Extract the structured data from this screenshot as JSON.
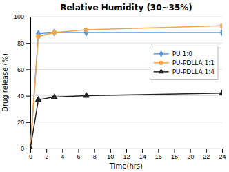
{
  "chart_data": {
    "type": "line",
    "title": "Relative Humidity (30~35%)",
    "xlabel": "Time(hrs)",
    "ylabel": "Drug release (%)",
    "x": [
      0,
      1,
      3,
      7,
      24
    ],
    "series": [
      {
        "name": "PU 1:0",
        "color": "#5B9BD5",
        "marker": "diamond",
        "line_style": "solid",
        "values": [
          0,
          87,
          88,
          88,
          88
        ]
      },
      {
        "name": "PU-PDLLA 1:1",
        "color": "#F4A44A",
        "marker": "circle",
        "line_style": "solid",
        "values": [
          0,
          85,
          88,
          90,
          93
        ]
      },
      {
        "name": "PU-PDLLA 1:4",
        "color": "#222222",
        "marker": "triangle",
        "line_style": "solid",
        "values": [
          0,
          37,
          39,
          40,
          42
        ]
      }
    ],
    "xlim": [
      0,
      24
    ],
    "ylim": [
      0,
      100
    ],
    "xticks": [
      0,
      2,
      4,
      6,
      8,
      10,
      12,
      14,
      16,
      18,
      20,
      22,
      24
    ],
    "yticks": [
      0,
      20,
      40,
      60,
      80,
      100
    ],
    "grid": "y",
    "legend": "right"
  }
}
